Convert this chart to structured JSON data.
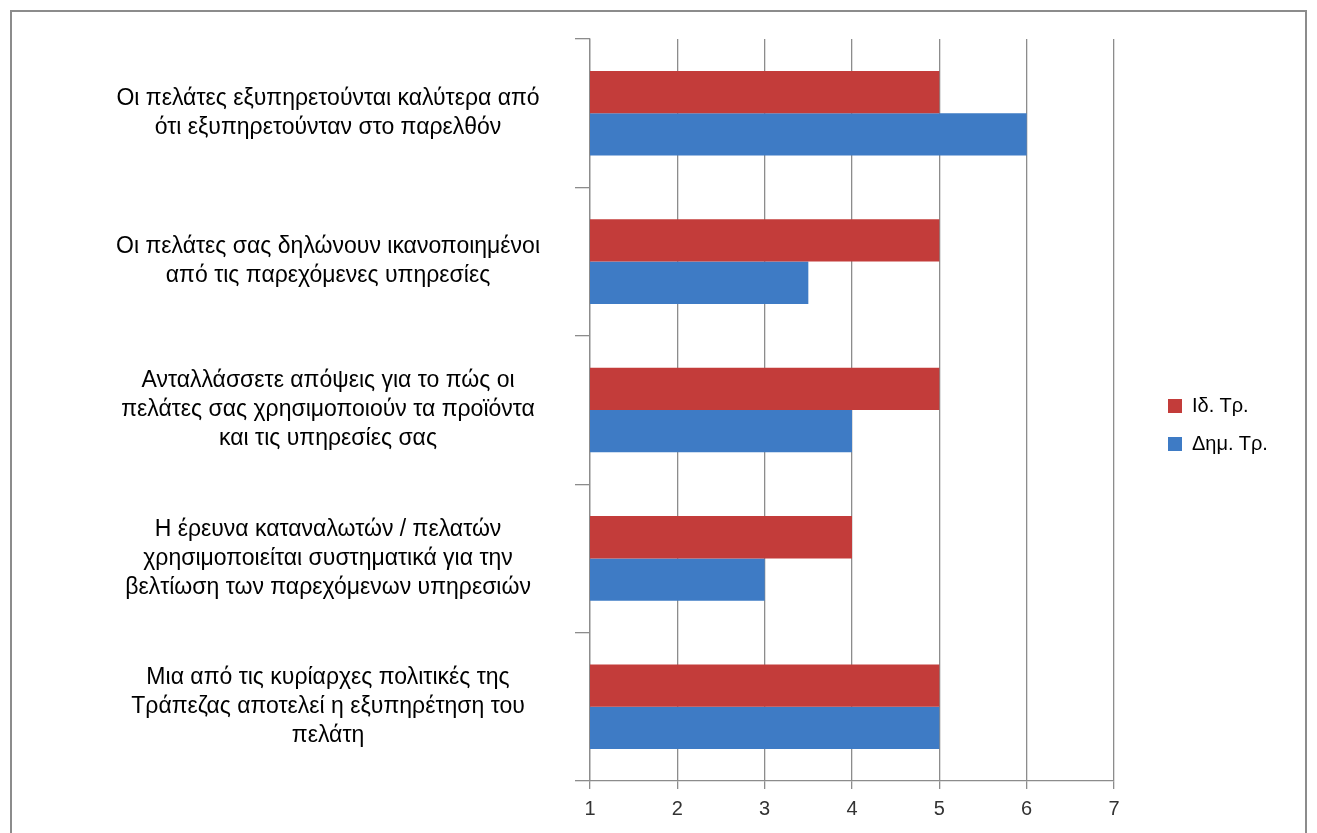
{
  "chart_data": {
    "type": "bar",
    "orientation": "horizontal",
    "categories": [
      "Οι πελάτες εξυπηρετούνται καλύτερα από ότι εξυπηρετούνταν στο παρελθόν",
      "Οι πελάτες σας δηλώνουν ικανοποιημένοι από τις παρεχόμενες υπηρεσίες",
      "Ανταλλάσσετε απόψεις για το πώς οι πελάτες σας χρησιμοποιούν τα προϊόντα και τις υπηρεσίες σας",
      "Η έρευνα καταναλωτών / πελατών χρησιμοποιείται συστηματικά για την βελτίωση των παρεχόμενων υπηρεσιών",
      "Μια από τις κυρίαρχες πολιτικές της Τράπεζας αποτελεί η εξυπηρέτηση του πελάτη"
    ],
    "series": [
      {
        "name": "Ιδ. Τρ.",
        "color": "#c33c3a",
        "values": [
          5,
          5,
          5,
          4,
          5
        ]
      },
      {
        "name": "Δημ. Τρ.",
        "color": "#3e7bc5",
        "values": [
          6,
          3.5,
          4,
          3,
          5
        ]
      }
    ],
    "xlim": [
      1,
      7
    ],
    "xticks": [
      1,
      2,
      3,
      4,
      5,
      6,
      7
    ],
    "grid": "x",
    "legend": "right"
  }
}
